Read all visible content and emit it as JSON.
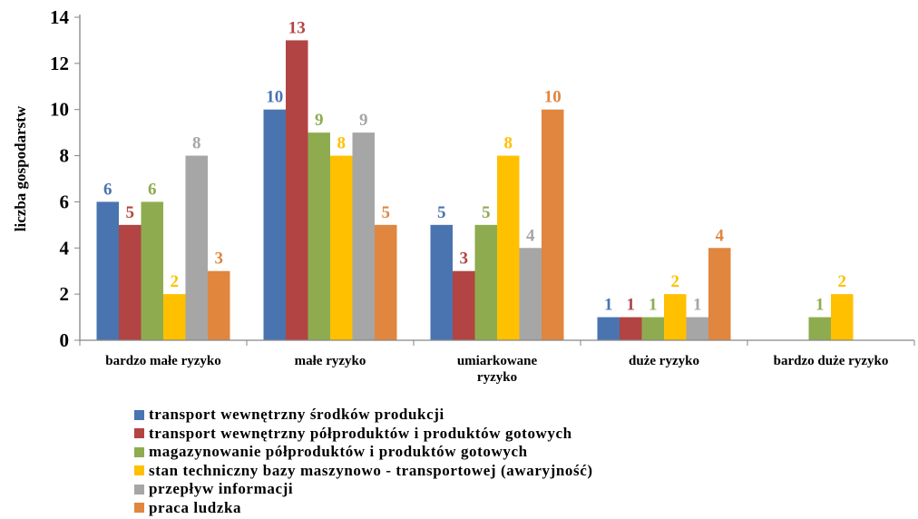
{
  "chart_data": {
    "type": "bar",
    "ylabel": "liczba gospodarstw",
    "ylim": [
      0,
      14
    ],
    "yticks": [
      0,
      2,
      4,
      6,
      8,
      10,
      12,
      14
    ],
    "grid": false,
    "legend_position": "bottom",
    "categories": [
      [
        "bardzo małe ryzyko"
      ],
      [
        "małe ryzyko"
      ],
      [
        "umiarkowane",
        "ryzyko"
      ],
      [
        "duże ryzyko"
      ],
      [
        "bardzo duże ryzyko"
      ]
    ],
    "series": [
      {
        "name": "transport wewnętrzny środków produkcji",
        "color": "#4a74b0",
        "values": [
          6,
          10,
          5,
          1,
          null
        ]
      },
      {
        "name": "transport wewnętrzny półproduktów i produktów gotowych",
        "color": "#b24443",
        "values": [
          5,
          13,
          3,
          1,
          null
        ]
      },
      {
        "name": "magazynowanie półproduktów i produktów gotowych",
        "color": "#8eac4f",
        "values": [
          6,
          9,
          5,
          1,
          1
        ]
      },
      {
        "name": "stan techniczny bazy maszynowo - transportowej (awaryjność)",
        "color": "#ffc000",
        "values": [
          2,
          8,
          8,
          2,
          2
        ]
      },
      {
        "name": "przepływ informacji",
        "color": "#a6a6a6",
        "values": [
          8,
          9,
          4,
          1,
          null
        ]
      },
      {
        "name": "praca ludzka",
        "color": "#e0863f",
        "values": [
          3,
          5,
          10,
          4,
          null
        ]
      }
    ]
  }
}
